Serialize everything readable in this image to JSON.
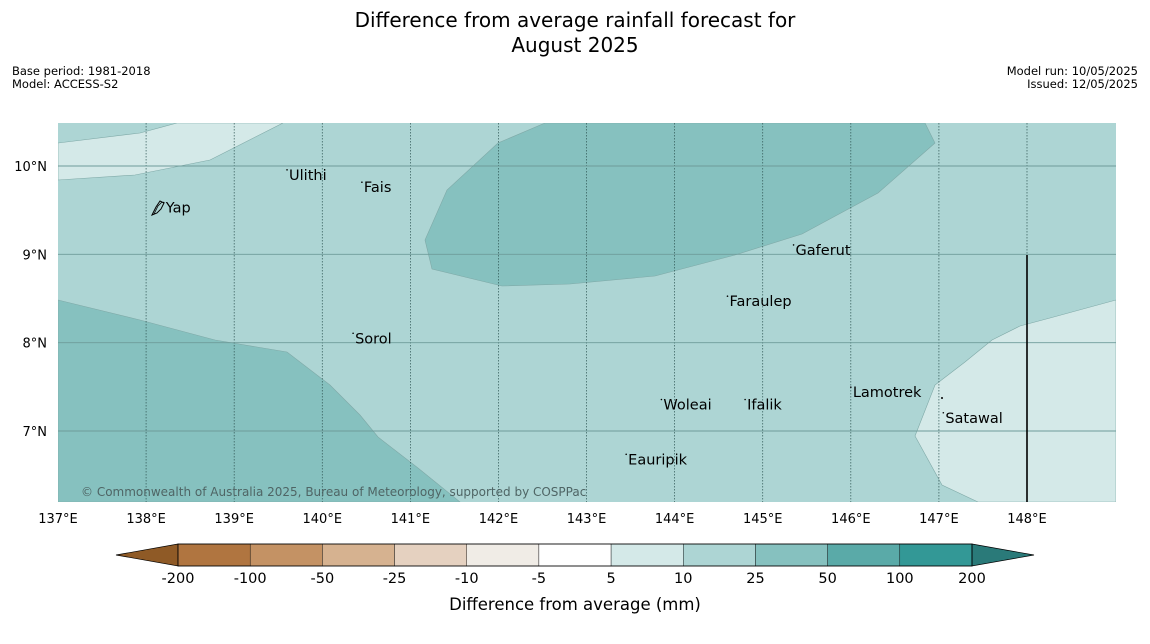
{
  "title": {
    "line1": "Difference from average rainfall forecast for",
    "line2": "August 2025"
  },
  "meta": {
    "base_period": "Base period: 1981-2018",
    "model": "Model: ACCESS-S2",
    "model_run": "Model run: 10/05/2025",
    "issued": "Issued: 12/05/2025"
  },
  "map": {
    "lon_range": [
      137,
      149
    ],
    "lat_range": [
      6.2,
      10.5
    ],
    "lon_ticks": [
      {
        "value": 137,
        "label": "137°E"
      },
      {
        "value": 138,
        "label": "138°E"
      },
      {
        "value": 139,
        "label": "139°E"
      },
      {
        "value": 140,
        "label": "140°E"
      },
      {
        "value": 141,
        "label": "141°E"
      },
      {
        "value": 142,
        "label": "142°E"
      },
      {
        "value": 143,
        "label": "143°E"
      },
      {
        "value": 144,
        "label": "144°E"
      },
      {
        "value": 145,
        "label": "145°E"
      },
      {
        "value": 146,
        "label": "146°E"
      },
      {
        "value": 147,
        "label": "147°E"
      },
      {
        "value": 148,
        "label": "148°E"
      }
    ],
    "lat_ticks": [
      {
        "value": 10,
        "label": "10°N"
      },
      {
        "value": 9,
        "label": "9°N"
      },
      {
        "value": 8,
        "label": "8°N"
      },
      {
        "value": 7,
        "label": "7°N"
      }
    ],
    "places": [
      {
        "name": "Yap",
        "lon": 138.2,
        "lat": 9.53
      },
      {
        "name": "Ulithi",
        "lon": 139.6,
        "lon_note": "",
        "lat": 9.9
      },
      {
        "name": "Fais",
        "lon": 140.45,
        "lat": 9.76
      },
      {
        "name": "Gaferut",
        "lon": 145.35,
        "lat": 9.05
      },
      {
        "name": "Faraulep",
        "lon": 144.6,
        "lat": 8.47
      },
      {
        "name": "Sorol",
        "lon": 140.35,
        "lat": 8.05
      },
      {
        "name": "Woleai",
        "lon": 143.85,
        "lat": 7.3
      },
      {
        "name": "Ifalik",
        "lon": 144.8,
        "lat": 7.3
      },
      {
        "name": "Lamotrek",
        "lon": 146.0,
        "lat": 7.44
      },
      {
        "name": "Satawal",
        "lon": 147.05,
        "lat": 7.15
      },
      {
        "name": "Eauripik",
        "lon": 143.45,
        "lat": 6.68
      }
    ],
    "attribution": "© Commonwealth of Australia 2025, Bureau of Meteorology, supported by COSPPac",
    "colors": {
      "5_to_10": "#d4e9e8",
      "10_to_25": "#add5d4",
      "25_to_50": "#86c1bf"
    }
  },
  "colorbar": {
    "label": "Difference from average (mm)",
    "ticks": [
      "-200",
      "-100",
      "-50",
      "-25",
      "-10",
      "-5",
      "5",
      "10",
      "25",
      "50",
      "100",
      "200"
    ],
    "colors": [
      "#8f5a26",
      "#b07540",
      "#c49264",
      "#d6b290",
      "#e5d1c0",
      "#f0ece6",
      "#ffffff",
      "#d4e9e8",
      "#add5d4",
      "#86c1bf",
      "#5aaaa8",
      "#339896",
      "#2a7a79"
    ]
  }
}
